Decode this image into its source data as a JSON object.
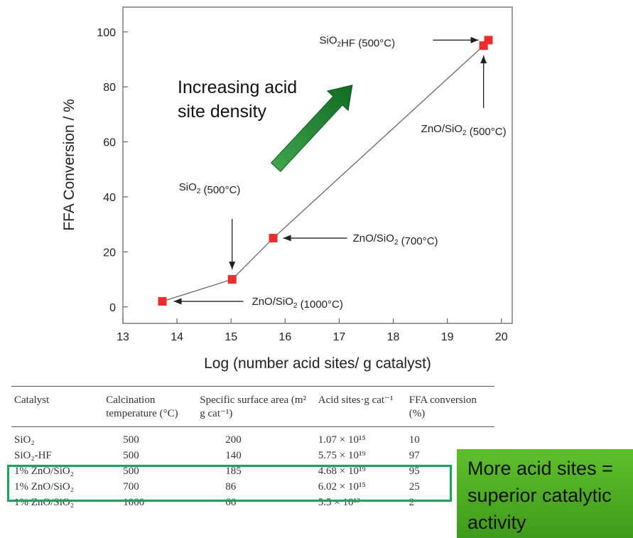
{
  "chart_data": {
    "type": "scatter",
    "xlabel": "Log (number acid sites/ g catalyst)",
    "ylabel": "FFA  Conversion / %",
    "xlim": [
      13,
      20.2
    ],
    "ylim": [
      -6,
      109
    ],
    "xticks": [
      13,
      14,
      15,
      16,
      17,
      18,
      19,
      20
    ],
    "yticks": [
      0,
      20,
      40,
      60,
      80,
      100
    ],
    "x": [
      13.73,
      15.02,
      15.78,
      19.67,
      19.76
    ],
    "y": [
      2,
      10,
      25,
      95,
      97
    ],
    "labels": [
      "ZnO/SiO₂ (1000°C)",
      "SiO₂ (500°C)",
      "ZnO/SiO₂ (700°C)",
      "ZnO/SiO₂ (500°C)",
      "SiO₂HF (500°C)"
    ],
    "annotation": "Increasing acid site density",
    "marker_color": "#ee2c2c",
    "arrow_color": "#1a7a2a"
  },
  "table": {
    "headers": [
      "Catalyst",
      "Calcination temperature (°C)",
      "Specific surface area (m² g cat⁻¹)",
      "Acid sites·g cat⁻¹",
      "FFA conversion (%)"
    ],
    "rows": [
      [
        "SiO₂",
        "500",
        "200",
        "1.07 × 10¹⁵",
        "10"
      ],
      [
        "SiO₂-HF",
        "500",
        "140",
        "5.75 × 10¹⁹",
        "97"
      ],
      [
        "1% ZnO/SiO₂",
        "500",
        "185",
        "4.68 × 10¹⁹",
        "95"
      ],
      [
        "1% ZnO/SiO₂",
        "700",
        "86",
        "6.02 × 10¹⁵",
        "25"
      ],
      [
        "1% ZnO/SiO₂",
        "1000",
        "66",
        "5.5 × 10¹³",
        "2"
      ]
    ]
  },
  "callout": {
    "lines": [
      "More acid sites =",
      "superior catalytic",
      "activity"
    ],
    "color": "#4aaa22"
  }
}
